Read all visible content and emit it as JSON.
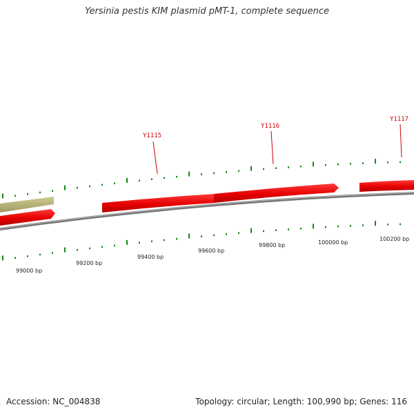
{
  "title": "Yersinia pestis KIM plasmid pMT-1, complete sequence",
  "footer": {
    "accession": "Accession: NC_004838",
    "summary": "Topology: circular; Length: 100,990 bp; Genes: 116"
  },
  "scale_labels": [
    {
      "text": "99000 bp"
    },
    {
      "text": "99200 bp"
    },
    {
      "text": "99400 bp"
    },
    {
      "text": "99600 bp"
    },
    {
      "text": "99800 bp"
    },
    {
      "text": "100000 bp"
    },
    {
      "text": "100200 bp"
    }
  ],
  "gene_labels": [
    {
      "text": "Y1115"
    },
    {
      "text": "Y1116"
    },
    {
      "text": "Y1117"
    }
  ],
  "colors": {
    "gene_red": "#e60000",
    "gene_olive": "#b8b478",
    "backbone": "#888888",
    "tick_green": "#118811",
    "label_red": "#cc0000"
  }
}
